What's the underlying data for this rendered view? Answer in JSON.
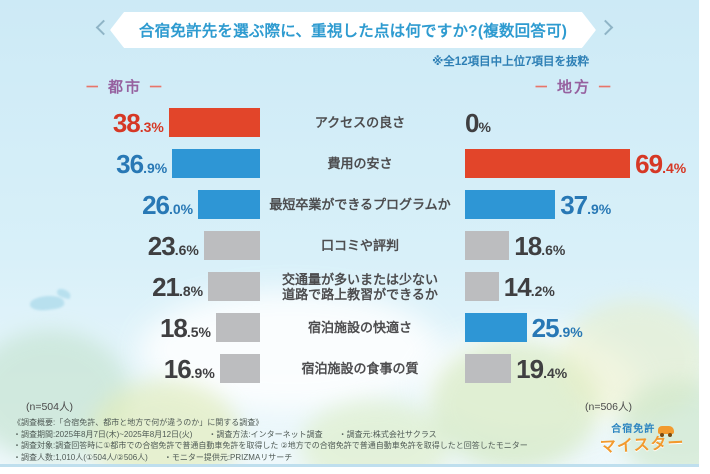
{
  "header": {
    "title": "合宿免許先を選ぶ際に、重視した点は何ですか?(複数回答可)",
    "subtitle": "※全12項目中上位7項目を抜粋"
  },
  "columns": {
    "left": {
      "dash_l": "－",
      "name": "都市",
      "dash_r": "－"
    },
    "right": {
      "dash_l": "－",
      "name": "地方",
      "dash_r": "－"
    }
  },
  "chart_data": {
    "type": "bar",
    "orientation": "horizontal-mirrored",
    "unit": "%",
    "title": "合宿免許先を選ぶ際に、重視した点は何ですか?(複数回答可)",
    "note": "※全12項目中上位7項目を抜粋",
    "xlim": [
      0,
      70
    ],
    "categories": [
      "アクセスの良さ",
      "費用の安さ",
      "最短卒業ができるプログラムか",
      "口コミや評判",
      "交通量が多いまたは少ない\n道路で路上教習ができるか",
      "宿泊施設の快適さ",
      "宿泊施設の食事の質"
    ],
    "series": [
      {
        "name": "都市",
        "n": 504,
        "values": [
          38.3,
          36.9,
          26.0,
          23.6,
          21.8,
          18.5,
          16.9
        ],
        "labels": [
          "38.3%",
          "36.9%",
          "26.0%",
          "23.6%",
          "21.8%",
          "18.5%",
          "16.9%"
        ],
        "styles": [
          "red",
          "blue",
          "blue",
          "gray",
          "gray",
          "gray",
          "gray"
        ]
      },
      {
        "name": "地方",
        "n": 506,
        "values": [
          0,
          69.4,
          37.9,
          18.6,
          14.2,
          25.9,
          19.4
        ],
        "labels": [
          "0%",
          "69.4%",
          "37.9%",
          "18.6%",
          "14.2%",
          "25.9%",
          "19.4%"
        ],
        "styles": [
          "none",
          "red",
          "blue",
          "gray",
          "gray",
          "blue",
          "gray"
        ]
      }
    ],
    "colors": {
      "red": {
        "bar": "#e2452a",
        "text": "#d63825"
      },
      "blue": {
        "bar": "#2e96d5",
        "text": "#2878b5"
      },
      "gray": {
        "bar": "#bcbdbf",
        "text": "#3f3f41"
      },
      "none": {
        "bar": null,
        "text": "#3f3f41"
      }
    },
    "legend_position": "none",
    "grid": false
  },
  "sample_notes": {
    "left": "(n=504人)",
    "right": "(n=506人)"
  },
  "footer": {
    "lines": [
      "《調査概要:「合宿免許、都市と地方で何が違うのか」に関する調査》",
      "・調査期間:2025年8月7日(木)~2025年8月12日(火)　　・調査方法:インターネット調査　　・調査元:株式会社サクラス",
      "・調査対象:調査回答時に①都市での合宿免許で普通自動車免許を取得した ②地方での合宿免許で普通自動車免許を取得したと回答したモニター",
      "・調査人数:1,010人(①504人/②506人)　　・モニター提供元:PRIZMAリサーチ"
    ]
  },
  "logo": {
    "top": "合宿免許",
    "bottom": "マイスター"
  }
}
